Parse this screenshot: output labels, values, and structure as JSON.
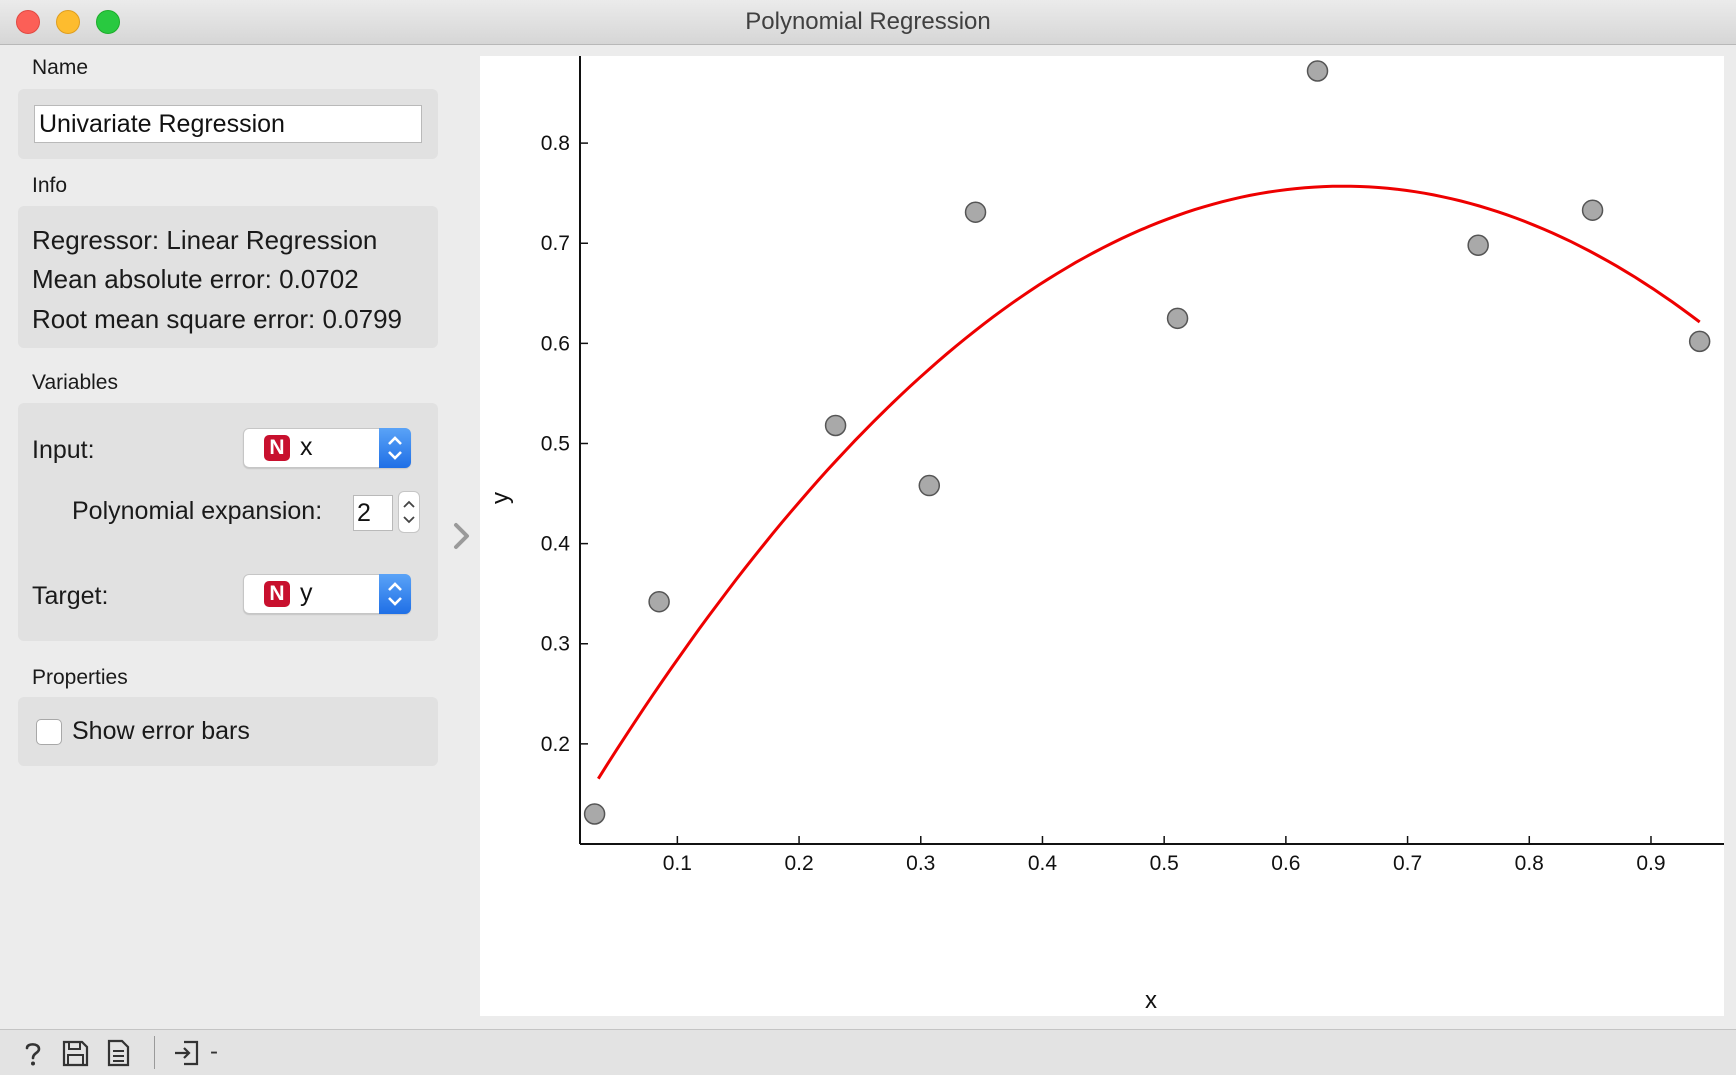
{
  "window": {
    "title": "Polynomial Regression"
  },
  "sections": {
    "name": "Name",
    "info": "Info",
    "variables": "Variables",
    "properties": "Properties"
  },
  "name_value": "Univariate Regression",
  "info": {
    "regressor": "Regressor: Linear Regression",
    "mae": "Mean absolute error: 0.0702",
    "rmse": "Root mean square error: 0.0799"
  },
  "variables": {
    "input_label": "Input:",
    "input_badge": "N",
    "input_value": "x",
    "poly_label": "Polynomial expansion:",
    "poly_value": "2",
    "target_label": "Target:",
    "target_badge": "N",
    "target_value": "y"
  },
  "properties": {
    "error_bars_label": "Show error bars",
    "error_bars_checked": false
  },
  "status": {
    "text": "-"
  },
  "icons": [
    "help-icon",
    "save-icon",
    "report-icon",
    "input-signal-icon",
    "collapse-arrow-icon"
  ],
  "colors": {
    "regression_line": "#ee0000",
    "point_fill": "#a9a9a9",
    "point_stroke": "#555555",
    "badge": "#c8102e"
  },
  "chart_data": {
    "type": "scatter",
    "xlabel": "x",
    "ylabel": "y",
    "xlim": [
      0.02,
      0.96
    ],
    "ylim": [
      0.1,
      0.887
    ],
    "xticks": [
      0.1,
      0.2,
      0.3,
      0.4,
      0.5,
      0.6,
      0.7,
      0.8,
      0.9
    ],
    "yticks": [
      0.2,
      0.3,
      0.4,
      0.5,
      0.6,
      0.7,
      0.8
    ],
    "grid": false,
    "points": [
      {
        "x": 0.032,
        "y": 0.13
      },
      {
        "x": 0.085,
        "y": 0.342
      },
      {
        "x": 0.23,
        "y": 0.518
      },
      {
        "x": 0.307,
        "y": 0.458
      },
      {
        "x": 0.345,
        "y": 0.731
      },
      {
        "x": 0.511,
        "y": 0.625
      },
      {
        "x": 0.626,
        "y": 0.872
      },
      {
        "x": 0.758,
        "y": 0.698
      },
      {
        "x": 0.852,
        "y": 0.733
      },
      {
        "x": 0.94,
        "y": 0.602
      }
    ],
    "curve": {
      "degree": 2,
      "x_range": [
        0.035,
        0.94
      ],
      "peak": {
        "x": 0.647,
        "y": 0.757
      },
      "a": -1.58
    }
  }
}
